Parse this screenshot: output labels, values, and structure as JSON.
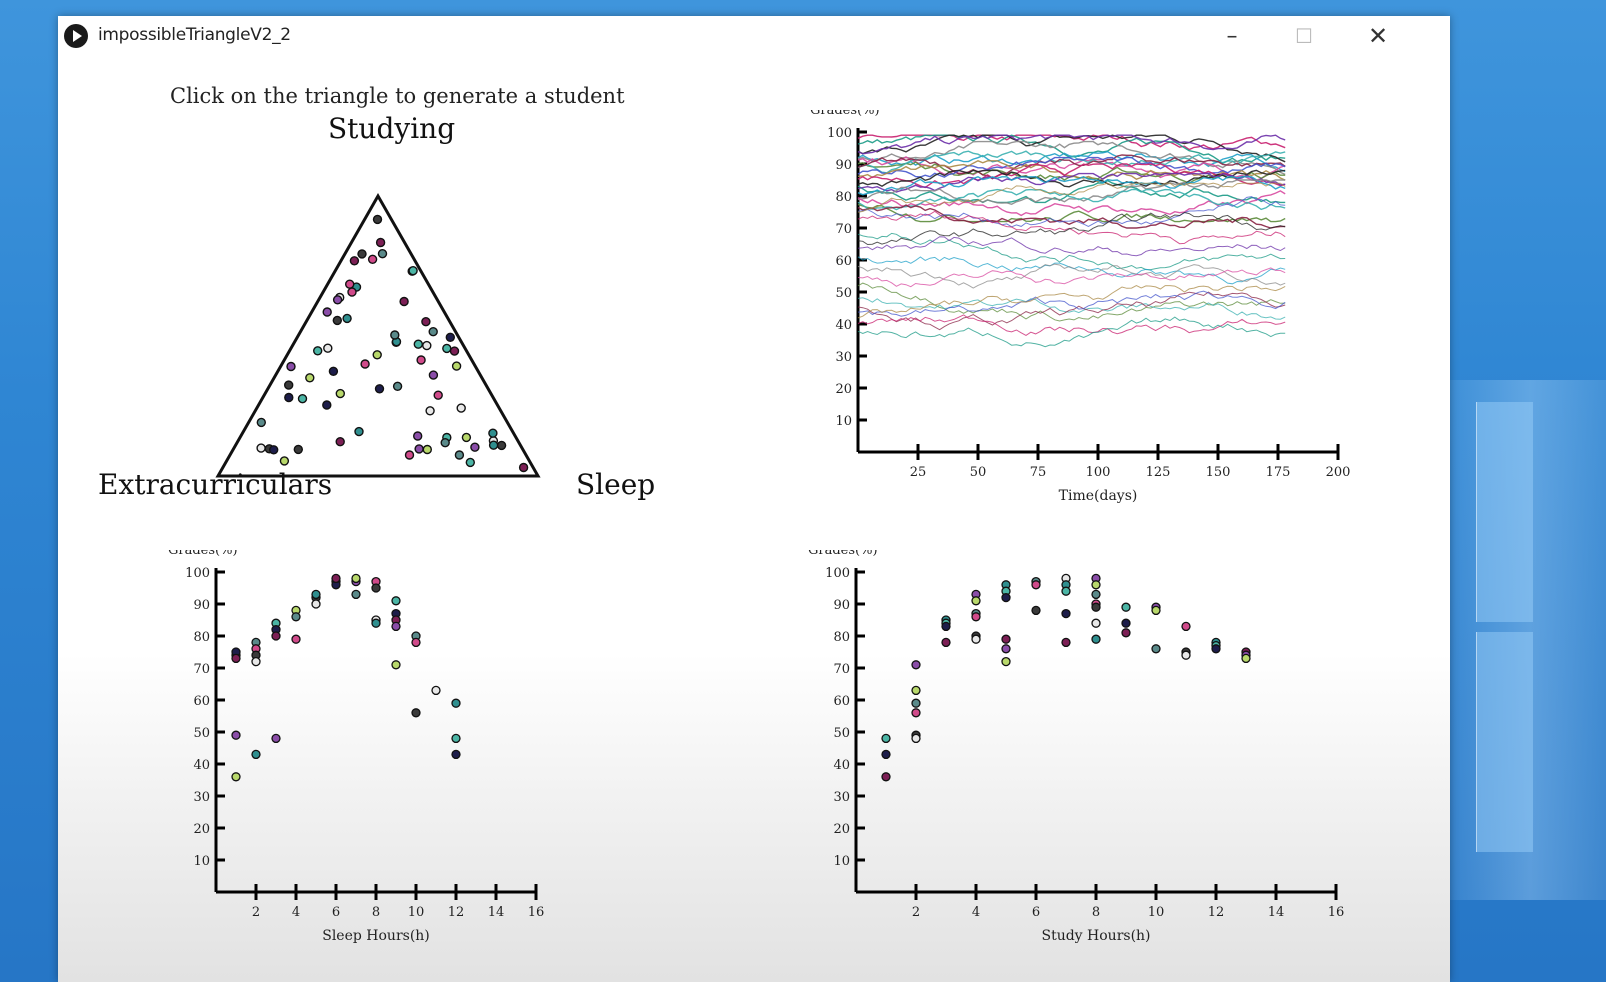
{
  "window": {
    "title": "impossibleTriangleV2_2"
  },
  "controls": {
    "minimize": "–",
    "maximize": "☐",
    "close": "✕"
  },
  "instruction": "Click on the triangle to generate a student",
  "triangle": {
    "top_label": "Studying",
    "left_label": "Extracurriculars",
    "right_label": "Sleep",
    "point_colors": [
      "#4bb5a5",
      "#1d1d4a",
      "#7c1f55",
      "#8a4da8",
      "#b8d86b",
      "#5a8a8a",
      "#d04a8a",
      "#3a3a3a",
      "#e8e8e8",
      "#2f8f8f"
    ]
  },
  "chart_data": [
    {
      "type": "line",
      "name": "grades-over-time",
      "ylabel": "Grades(%)",
      "xlabel": "Time(days)",
      "xlim": [
        0,
        200
      ],
      "ylim": [
        0,
        100
      ],
      "x_ticks": [
        25,
        50,
        75,
        100,
        125,
        150,
        175,
        200
      ],
      "y_ticks": [
        10,
        20,
        30,
        40,
        50,
        60,
        70,
        80,
        90,
        100
      ],
      "x_range_of_series": [
        0,
        178
      ],
      "series_start_levels": [
        97,
        96,
        95,
        94,
        93,
        92,
        91,
        90,
        89,
        88,
        87,
        86,
        85,
        84,
        83,
        82,
        81,
        80,
        79,
        78,
        77,
        76,
        75,
        74,
        72,
        69,
        66,
        63,
        60,
        57,
        54,
        52,
        49,
        46,
        44,
        42,
        40,
        38
      ],
      "series_colors": [
        "#c81e6e",
        "#1a9a86",
        "#222222",
        "#6b2fa8",
        "#1ea0c8",
        "#8a8a8a",
        "#d84aa0",
        "#5b8b3a",
        "#3ab0b0",
        "#882244",
        "#4455cc",
        "#aa8844"
      ]
    },
    {
      "type": "scatter",
      "name": "grades-vs-sleep",
      "ylabel": "Grades(%)",
      "xlabel": "Sleep Hours(h)",
      "xlim": [
        0,
        16
      ],
      "ylim": [
        0,
        100
      ],
      "x_ticks": [
        2,
        4,
        6,
        8,
        10,
        12,
        14,
        16
      ],
      "y_ticks": [
        10,
        20,
        30,
        40,
        50,
        60,
        70,
        80,
        90,
        100
      ],
      "points": [
        [
          1,
          74
        ],
        [
          1,
          75
        ],
        [
          1,
          73
        ],
        [
          1,
          49
        ],
        [
          1,
          36
        ],
        [
          2,
          78
        ],
        [
          2,
          76
        ],
        [
          2,
          74
        ],
        [
          2,
          72
        ],
        [
          2,
          43
        ],
        [
          3,
          84
        ],
        [
          3,
          82
        ],
        [
          3,
          80
        ],
        [
          3,
          48
        ],
        [
          4,
          88
        ],
        [
          4,
          86
        ],
        [
          4,
          79
        ],
        [
          5,
          92
        ],
        [
          5,
          90
        ],
        [
          5,
          93
        ],
        [
          6,
          97
        ],
        [
          6,
          96
        ],
        [
          6,
          98
        ],
        [
          7,
          97
        ],
        [
          7,
          98
        ],
        [
          7,
          93
        ],
        [
          8,
          97
        ],
        [
          8,
          95
        ],
        [
          8,
          85
        ],
        [
          8,
          84
        ],
        [
          9,
          91
        ],
        [
          9,
          87
        ],
        [
          9,
          85
        ],
        [
          9,
          83
        ],
        [
          9,
          71
        ],
        [
          10,
          80
        ],
        [
          10,
          78
        ],
        [
          10,
          56
        ],
        [
          11,
          63
        ],
        [
          12,
          59
        ],
        [
          12,
          48
        ],
        [
          12,
          43
        ]
      ]
    },
    {
      "type": "scatter",
      "name": "grades-vs-study",
      "ylabel": "Grades(%)",
      "xlabel": "Study Hours(h)",
      "xlim": [
        0,
        16
      ],
      "ylim": [
        0,
        100
      ],
      "x_ticks": [
        2,
        4,
        6,
        8,
        10,
        12,
        14,
        16
      ],
      "y_ticks": [
        10,
        20,
        30,
        40,
        50,
        60,
        70,
        80,
        90,
        100
      ],
      "points": [
        [
          1,
          48
        ],
        [
          1,
          43
        ],
        [
          1,
          36
        ],
        [
          2,
          71
        ],
        [
          2,
          63
        ],
        [
          2,
          59
        ],
        [
          2,
          56
        ],
        [
          2,
          49
        ],
        [
          2,
          48
        ],
        [
          3,
          85
        ],
        [
          3,
          84
        ],
        [
          3,
          83
        ],
        [
          3,
          78
        ],
        [
          4,
          93
        ],
        [
          4,
          91
        ],
        [
          4,
          87
        ],
        [
          4,
          86
        ],
        [
          4,
          80
        ],
        [
          4,
          79
        ],
        [
          5,
          96
        ],
        [
          5,
          94
        ],
        [
          5,
          92
        ],
        [
          5,
          79
        ],
        [
          5,
          76
        ],
        [
          5,
          72
        ],
        [
          6,
          97
        ],
        [
          6,
          96
        ],
        [
          6,
          88
        ],
        [
          7,
          98
        ],
        [
          7,
          96
        ],
        [
          7,
          94
        ],
        [
          7,
          87
        ],
        [
          7,
          78
        ],
        [
          8,
          98
        ],
        [
          8,
          96
        ],
        [
          8,
          93
        ],
        [
          8,
          90
        ],
        [
          8,
          89
        ],
        [
          8,
          84
        ],
        [
          8,
          79
        ],
        [
          9,
          89
        ],
        [
          9,
          84
        ],
        [
          9,
          81
        ],
        [
          10,
          89
        ],
        [
          10,
          88
        ],
        [
          10,
          76
        ],
        [
          11,
          83
        ],
        [
          11,
          75
        ],
        [
          11,
          74
        ],
        [
          12,
          78
        ],
        [
          12,
          77
        ],
        [
          12,
          76
        ],
        [
          13,
          75
        ],
        [
          13,
          74
        ],
        [
          13,
          73
        ]
      ]
    }
  ]
}
